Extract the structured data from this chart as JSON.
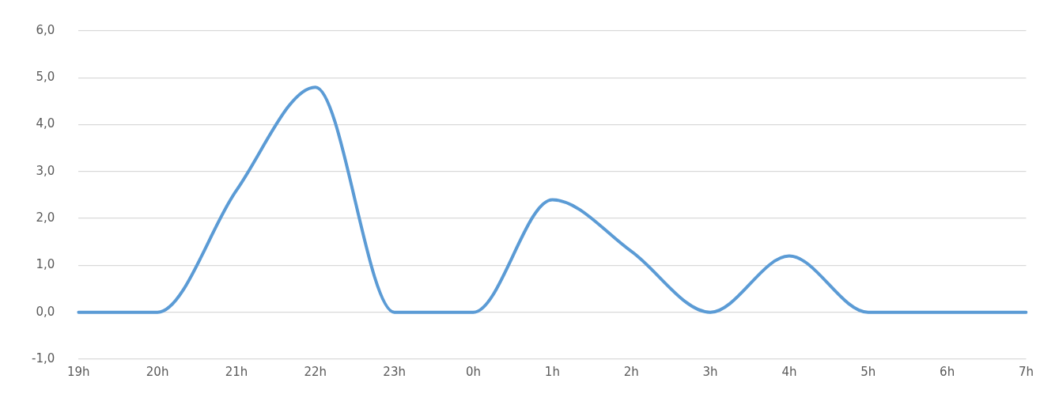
{
  "chart_data": {
    "type": "line",
    "categories": [
      "19h",
      "20h",
      "21h",
      "22h",
      "23h",
      "0h",
      "1h",
      "2h",
      "3h",
      "4h",
      "5h",
      "6h",
      "7h"
    ],
    "series": [
      {
        "color": "#5b9bd5",
        "values": [
          0,
          0,
          2.6,
          4.8,
          0,
          0,
          2.4,
          1.3,
          0,
          1.2,
          0,
          0,
          0
        ]
      }
    ],
    "ylim": [
      -1,
      6
    ],
    "yticks": [
      {
        "value": -1,
        "label": "-1,0"
      },
      {
        "value": 0,
        "label": "0,0"
      },
      {
        "value": 1,
        "label": "1,0"
      },
      {
        "value": 2,
        "label": "2,0"
      },
      {
        "value": 3,
        "label": "3,0"
      },
      {
        "value": 4,
        "label": "4,0"
      },
      {
        "value": 5,
        "label": "5,0"
      },
      {
        "value": 6,
        "label": "6,0"
      }
    ],
    "grid": "y",
    "legend": false,
    "marker": "none",
    "line_style": "solid"
  }
}
